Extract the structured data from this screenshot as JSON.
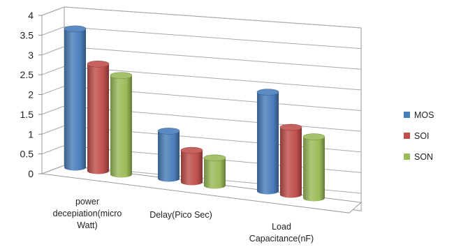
{
  "chart_data": {
    "type": "bar",
    "style": "3d-cylinder",
    "categories": [
      [
        "power",
        "decepiation(micro",
        "Watt)"
      ],
      [
        "Delay(Pico Sec)"
      ],
      [
        "Load",
        "Capacitance(nF)"
      ]
    ],
    "series": [
      {
        "name": "MOS",
        "color": "#4a7ebb",
        "values": [
          3.5,
          1.2,
          2.5
        ]
      },
      {
        "name": "SOI",
        "color": "#c0504d",
        "values": [
          2.7,
          0.8,
          1.7
        ]
      },
      {
        "name": "SON",
        "color": "#9bbb59",
        "values": [
          2.5,
          0.7,
          1.55
        ]
      }
    ],
    "ylim": [
      0,
      4
    ],
    "yticks": [
      "0",
      "0.5",
      "1",
      "1.5",
      "2",
      "2.5",
      "3",
      "3.5",
      "4"
    ],
    "grid": true,
    "legend_position": "right"
  }
}
